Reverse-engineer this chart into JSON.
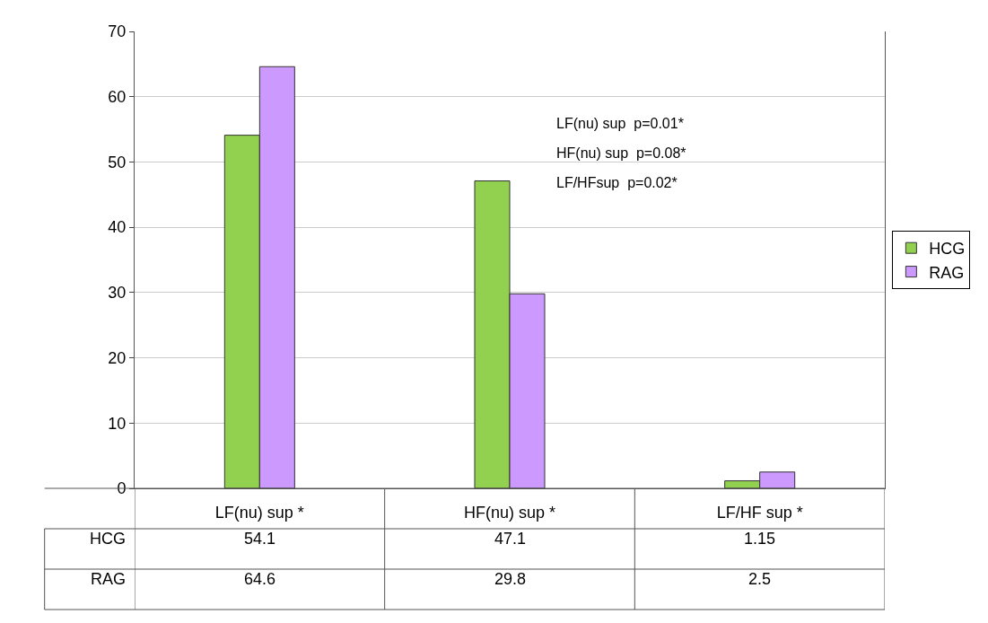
{
  "chart_data": {
    "type": "bar",
    "categories": [
      "LF(nu) sup *",
      "HF(nu) sup *",
      "LF/HF sup *"
    ],
    "series": [
      {
        "name": "HCG",
        "color": "#92d050",
        "values": [
          54.1,
          47.1,
          1.15
        ]
      },
      {
        "name": "RAG",
        "color": "#cc99ff",
        "values": [
          64.6,
          29.8,
          2.5
        ]
      }
    ],
    "ylim": [
      0,
      70
    ],
    "yticks": [
      0,
      10,
      20,
      30,
      40,
      50,
      60,
      70
    ],
    "grid": "y",
    "legend": "right",
    "data_labels": true,
    "annotations": [
      "LF(nu) sup  p=0.01*",
      "HF(nu) sup  p=0.08*",
      "LF/HFsup  p=0.02*"
    ]
  }
}
